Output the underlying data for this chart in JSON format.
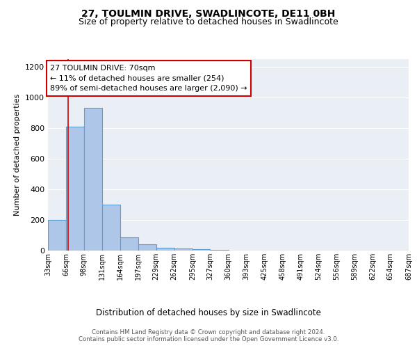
{
  "title": "27, TOULMIN DRIVE, SWADLINCOTE, DE11 0BH",
  "subtitle": "Size of property relative to detached houses in Swadlincote",
  "xlabel": "Distribution of detached houses by size in Swadlincote",
  "ylabel": "Number of detached properties",
  "bin_edges": [
    33,
    66,
    98,
    131,
    164,
    197,
    229,
    262,
    295,
    327,
    360,
    393,
    425,
    458,
    491,
    524,
    556,
    589,
    622,
    654,
    687
  ],
  "bar_heights": [
    200,
    810,
    930,
    300,
    85,
    40,
    20,
    15,
    10,
    5,
    0,
    0,
    0,
    0,
    0,
    0,
    0,
    0,
    0,
    0
  ],
  "bar_color": "#aec6e8",
  "bar_edge_color": "#5a9fd4",
  "bar_edge_width": 0.8,
  "property_line_x": 70,
  "property_line_color": "#cc0000",
  "annotation_line1": "27 TOULMIN DRIVE: 70sqm",
  "annotation_line2": "← 11% of detached houses are smaller (254)",
  "annotation_line3": "89% of semi-detached houses are larger (2,090) →",
  "annotation_box_color": "#ffffff",
  "annotation_box_edge": "#cc0000",
  "ylim": [
    0,
    1250
  ],
  "yticks": [
    0,
    200,
    400,
    600,
    800,
    1000,
    1200
  ],
  "bg_color": "#eaeef5",
  "footer_text": "Contains HM Land Registry data © Crown copyright and database right 2024.\nContains public sector information licensed under the Open Government Licence v3.0.",
  "title_fontsize": 10,
  "subtitle_fontsize": 9,
  "tick_label_fontsize": 7,
  "ylabel_fontsize": 8,
  "xlabel_fontsize": 8.5,
  "annotation_fontsize": 8
}
